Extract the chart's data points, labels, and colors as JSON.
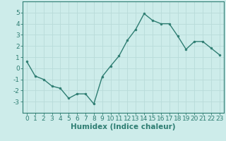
{
  "x": [
    0,
    1,
    2,
    3,
    4,
    5,
    6,
    7,
    8,
    9,
    10,
    11,
    12,
    13,
    14,
    15,
    16,
    17,
    18,
    19,
    20,
    21,
    22,
    23
  ],
  "y": [
    0.6,
    -0.7,
    -1.0,
    -1.6,
    -1.8,
    -2.7,
    -2.3,
    -2.3,
    -3.2,
    -0.75,
    0.2,
    1.1,
    2.5,
    3.5,
    4.9,
    4.3,
    4.0,
    4.0,
    2.9,
    1.7,
    2.4,
    2.4,
    1.8,
    1.2
  ],
  "line_color": "#2e7d72",
  "marker": "o",
  "markersize": 2.0,
  "linewidth": 1.0,
  "bg_color": "#cdecea",
  "grid_color": "#b8dbd9",
  "xlabel": "Humidex (Indice chaleur)",
  "xlim": [
    -0.5,
    23.5
  ],
  "ylim": [
    -4,
    6
  ],
  "yticks": [
    -3,
    -2,
    -1,
    0,
    1,
    2,
    3,
    4,
    5
  ],
  "xticks": [
    0,
    1,
    2,
    3,
    4,
    5,
    6,
    7,
    8,
    9,
    10,
    11,
    12,
    13,
    14,
    15,
    16,
    17,
    18,
    19,
    20,
    21,
    22,
    23
  ],
  "tick_fontsize": 6.5,
  "xlabel_fontsize": 7.5,
  "axis_color": "#2e7d72",
  "tick_color": "#2e7d72"
}
